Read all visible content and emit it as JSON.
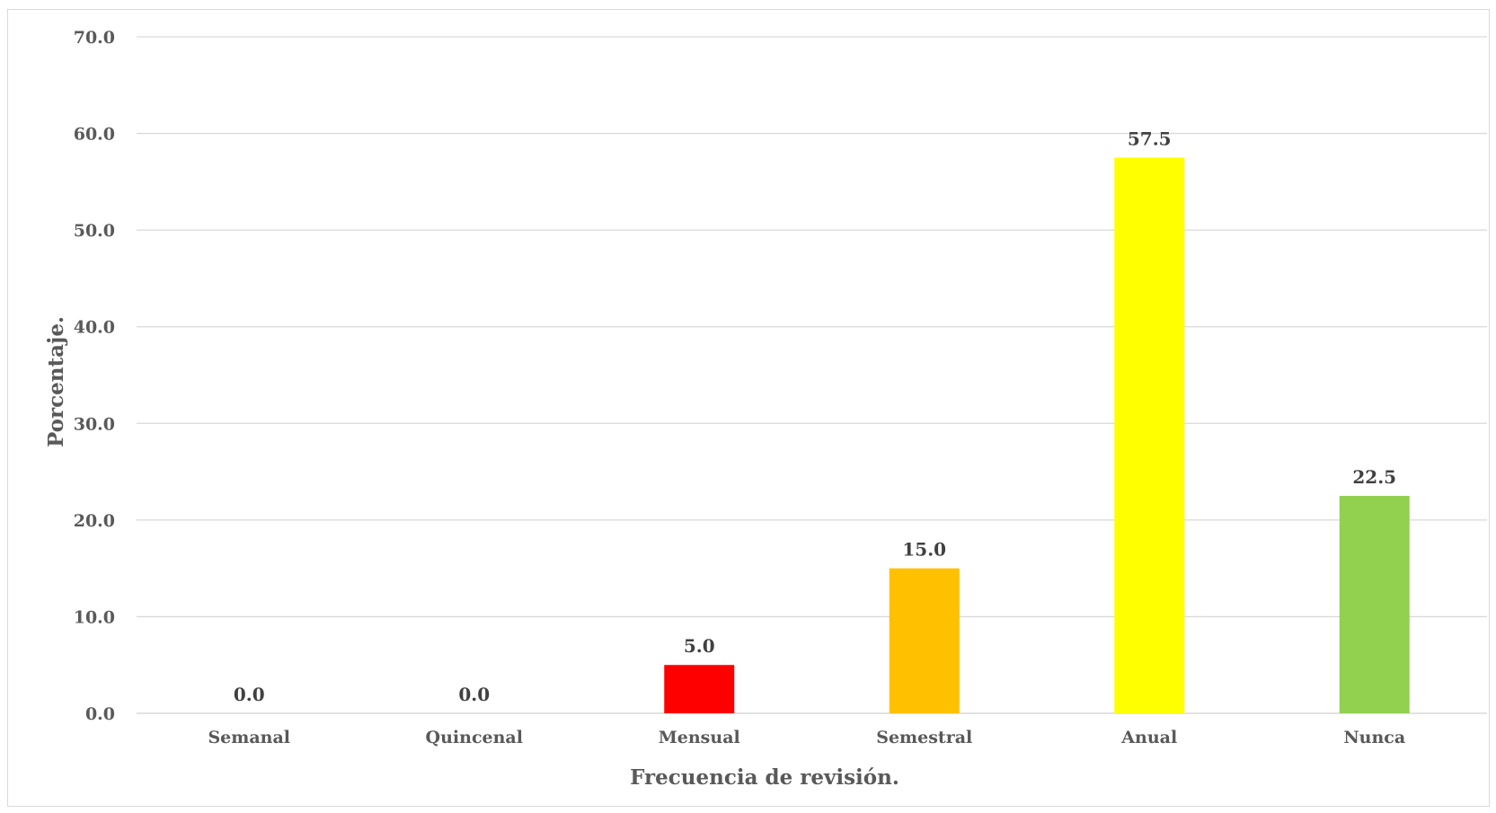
{
  "chart_data": {
    "type": "bar",
    "title": "",
    "xlabel": "Frecuencia de revisión.",
    "ylabel": "Porcentaje.",
    "categories": [
      "Semanal",
      "Quincenal",
      "Mensual",
      "Semestral",
      "Anual",
      "Nunca"
    ],
    "values": [
      0.0,
      0.0,
      5.0,
      15.0,
      57.5,
      22.5
    ],
    "value_labels": [
      "0.0",
      "0.0",
      "5.0",
      "15.0",
      "57.5",
      "22.5"
    ],
    "colors": [
      "#ff0000",
      "#ff0000",
      "#ff0000",
      "#ffc000",
      "#ffff00",
      "#92d050"
    ],
    "ylim": [
      0,
      70
    ],
    "yticks": [
      "0.0",
      "10.0",
      "20.0",
      "30.0",
      "40.0",
      "50.0",
      "60.0",
      "70.0"
    ],
    "grid": true,
    "legend": "none"
  }
}
